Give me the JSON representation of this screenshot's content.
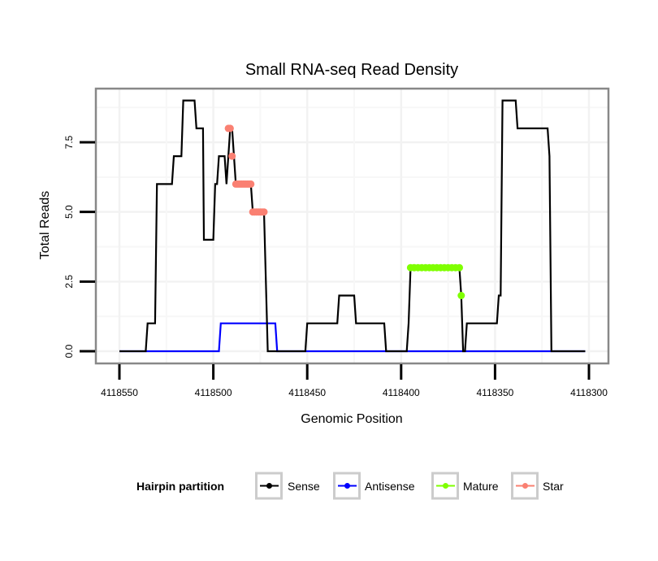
{
  "chart_data": {
    "type": "line",
    "title": "Small RNA-seq Read Density",
    "xlabel": "Genomic Position",
    "ylabel": "Total Reads",
    "xlim": [
      4118550,
      4118300
    ],
    "x_reversed": true,
    "ylim": [
      0,
      9
    ],
    "x_ticks": [
      4118550,
      4118500,
      4118450,
      4118400,
      4118350,
      4118300
    ],
    "x_tick_labels": [
      "4118550",
      "4118500",
      "4118450",
      "4118400",
      "4118350",
      "4118300"
    ],
    "y_ticks": [
      0,
      2.5,
      5,
      7.5
    ],
    "y_tick_labels": [
      "0.0",
      "2.5",
      "5.0",
      "7.5"
    ],
    "grid": true,
    "legend": {
      "title": "Hairpin partition",
      "position": "bottom",
      "entries": [
        {
          "name": "Sense",
          "color": "#000000"
        },
        {
          "name": "Antisense",
          "color": "#0000ff"
        },
        {
          "name": "Mature",
          "color": "#7fff00"
        },
        {
          "name": "Star",
          "color": "#fa8072"
        }
      ]
    },
    "series": [
      {
        "name": "Sense",
        "style": "line",
        "color": "#000000",
        "points": [
          [
            4118550,
            0
          ],
          [
            4118536,
            0
          ],
          [
            4118535,
            1
          ],
          [
            4118531,
            1
          ],
          [
            4118530,
            6
          ],
          [
            4118522,
            6
          ],
          [
            4118521,
            7
          ],
          [
            4118517,
            7
          ],
          [
            4118516,
            9
          ],
          [
            4118510,
            9
          ],
          [
            4118509,
            8
          ],
          [
            4118505.5,
            8
          ],
          [
            4118505,
            4
          ],
          [
            4118500,
            4
          ],
          [
            4118499,
            6
          ],
          [
            4118498,
            6
          ],
          [
            4118497,
            7
          ],
          [
            4118494,
            7
          ],
          [
            4118493,
            6
          ],
          [
            4118491,
            8
          ],
          [
            4118490,
            8
          ],
          [
            4118489,
            7
          ],
          [
            4118488,
            6
          ],
          [
            4118480,
            6
          ],
          [
            4118479,
            5
          ],
          [
            4118473,
            5
          ],
          [
            4118471,
            0
          ],
          [
            4118451,
            0
          ],
          [
            4118450,
            1
          ],
          [
            4118434,
            1
          ],
          [
            4118433,
            2
          ],
          [
            4118425,
            2
          ],
          [
            4118424,
            1
          ],
          [
            4118409,
            1
          ],
          [
            4118408,
            0
          ],
          [
            4118397,
            0
          ],
          [
            4118396,
            1
          ],
          [
            4118395,
            3
          ],
          [
            4118369,
            3
          ],
          [
            4118368,
            2
          ],
          [
            4118367,
            0
          ],
          [
            4118366,
            0
          ],
          [
            4118365,
            1
          ],
          [
            4118349,
            1
          ],
          [
            4118348,
            2
          ],
          [
            4118347,
            2
          ],
          [
            4118346,
            9
          ],
          [
            4118339,
            9
          ],
          [
            4118338,
            8
          ],
          [
            4118322,
            8
          ],
          [
            4118321,
            7
          ],
          [
            4118320,
            0
          ],
          [
            4118302,
            0
          ]
        ]
      },
      {
        "name": "Antisense",
        "style": "line",
        "color": "#0000ff",
        "points": [
          [
            4118550,
            0
          ],
          [
            4118497,
            0
          ],
          [
            4118496,
            1
          ],
          [
            4118467,
            1
          ],
          [
            4118466,
            0
          ],
          [
            4118302,
            0
          ]
        ]
      },
      {
        "name": "Mature",
        "style": "points",
        "color": "#7fff00",
        "points": [
          [
            4118395,
            3
          ],
          [
            4118393,
            3
          ],
          [
            4118391,
            3
          ],
          [
            4118389,
            3
          ],
          [
            4118387,
            3
          ],
          [
            4118385,
            3
          ],
          [
            4118383,
            3
          ],
          [
            4118381,
            3
          ],
          [
            4118379,
            3
          ],
          [
            4118377,
            3
          ],
          [
            4118375,
            3
          ],
          [
            4118373,
            3
          ],
          [
            4118371,
            3
          ],
          [
            4118369,
            3
          ],
          [
            4118368,
            2
          ]
        ]
      },
      {
        "name": "Star",
        "style": "points",
        "color": "#fa8072",
        "points": [
          [
            4118492,
            8
          ],
          [
            4118491,
            8
          ],
          [
            4118490,
            7
          ],
          [
            4118488,
            6
          ],
          [
            4118487,
            6
          ],
          [
            4118486,
            6
          ],
          [
            4118485,
            6
          ],
          [
            4118484,
            6
          ],
          [
            4118483,
            6
          ],
          [
            4118482,
            6
          ],
          [
            4118481,
            6
          ],
          [
            4118480,
            6
          ],
          [
            4118479,
            5
          ],
          [
            4118478,
            5
          ],
          [
            4118477,
            5
          ],
          [
            4118476,
            5
          ],
          [
            4118475,
            5
          ],
          [
            4118474,
            5
          ],
          [
            4118473,
            5
          ]
        ]
      }
    ]
  }
}
